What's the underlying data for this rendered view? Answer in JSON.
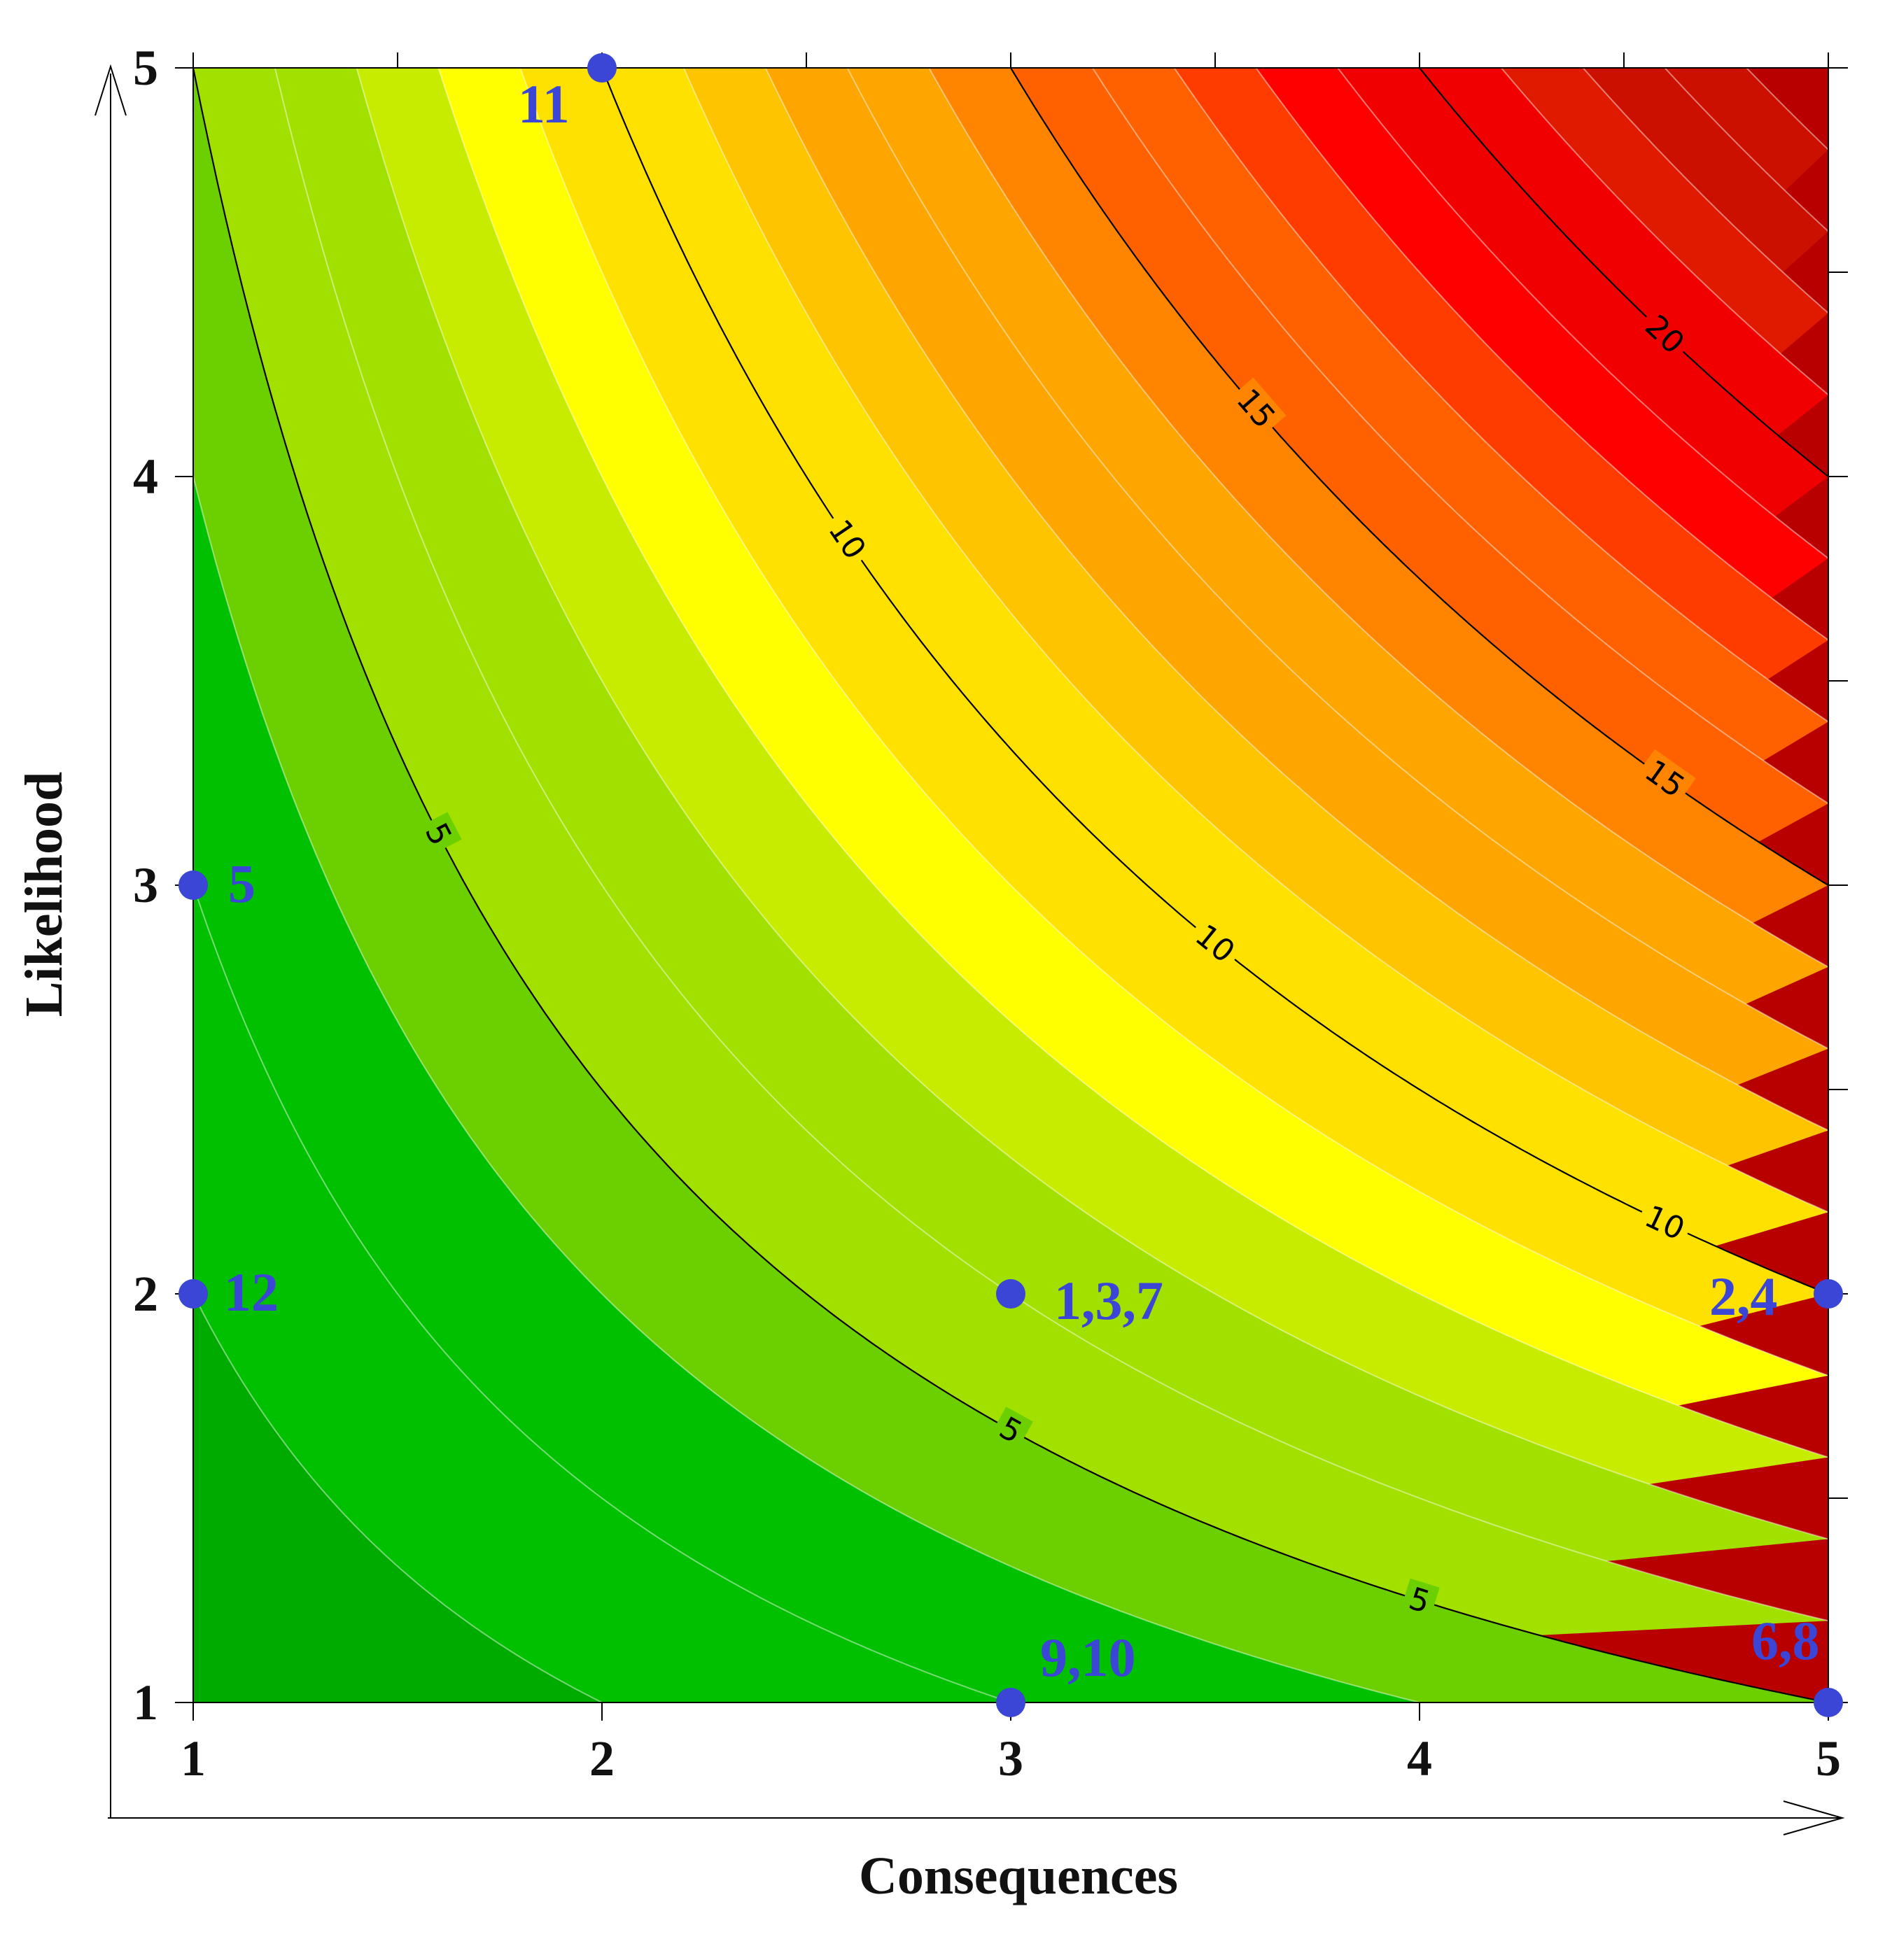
{
  "chart_data": {
    "type": "contour",
    "function": "risk = consequences × likelihood",
    "title": "",
    "xlabel": "Consequences",
    "ylabel": "Likelihood",
    "xlim": [
      1,
      5
    ],
    "ylim": [
      1,
      5
    ],
    "x_ticks": [
      "1",
      "2",
      "3",
      "4",
      "5"
    ],
    "y_ticks": [
      "1",
      "2",
      "3",
      "4",
      "5"
    ],
    "filled_levels": [
      1,
      2,
      3,
      4,
      5,
      6,
      7,
      8,
      9,
      10,
      11,
      12,
      13,
      14,
      15,
      16,
      17,
      18,
      19,
      20,
      21,
      22,
      23,
      24,
      25
    ],
    "colormap": [
      "#00ab00",
      "#00c000",
      "#6cd000",
      "#a2e000",
      "#c8ec00",
      "#ffff00",
      "#ffe100",
      "#ffc400",
      "#ffa500",
      "#ff8400",
      "#ff6000",
      "#ff3c00",
      "#ff0000",
      "#f00000",
      "#df1a00",
      "#cb1000",
      "#b80000"
    ],
    "labeled_contours": [
      {
        "level": 5,
        "label": "5"
      },
      {
        "level": 10,
        "label": "10"
      },
      {
        "level": 15,
        "label": "15"
      },
      {
        "level": 20,
        "label": "20"
      }
    ],
    "point_color": "#3b45d6",
    "points": [
      {
        "x": 2,
        "y": 5,
        "label": "11"
      },
      {
        "x": 1,
        "y": 3,
        "label": "5"
      },
      {
        "x": 1,
        "y": 2,
        "label": "12"
      },
      {
        "x": 3,
        "y": 2,
        "label": "1,3,7"
      },
      {
        "x": 5,
        "y": 2,
        "label": "2,4"
      },
      {
        "x": 3,
        "y": 1,
        "label": "9,10"
      },
      {
        "x": 5,
        "y": 1,
        "label": "6,8"
      }
    ]
  }
}
